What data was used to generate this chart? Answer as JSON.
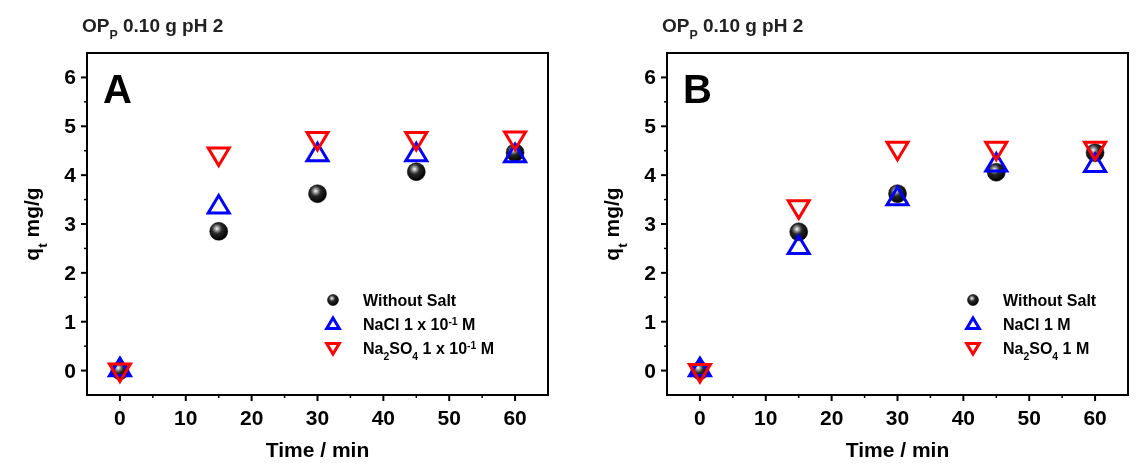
{
  "chart_data": [
    {
      "type": "scatter",
      "title": "OP$_{P}$ 0.10 g pH 2",
      "xlabel": "Time / min",
      "ylabel": "q$_{t}$ mg/g",
      "annotations": [
        "A"
      ],
      "x": [
        0,
        15,
        30,
        45,
        60
      ],
      "xlim": [
        -5,
        65
      ],
      "xticks": [
        0,
        10,
        20,
        30,
        40,
        50,
        60
      ],
      "ylim": [
        -0.5,
        6.5
      ],
      "yticks": [
        0,
        1,
        2,
        3,
        4,
        5,
        6
      ],
      "legend": "bottom right",
      "grid": false,
      "series": [
        {
          "name": "Without Salt",
          "color": "#000000",
          "marker": "circle",
          "values": [
            0,
            2.85,
            3.62,
            4.07,
            4.46
          ]
        },
        {
          "name": "NaCl 1 x 10$^{-1}$ M",
          "color": "#0000ff",
          "marker": "triangle",
          "values": [
            0.05,
            3.38,
            4.45,
            4.45,
            4.43
          ]
        },
        {
          "name": "Na$_{2}$SO$_{4}$ 1 x 10$^{-1}$ M",
          "color": "#ff0000",
          "marker": "triangle-down",
          "values": [
            -0.02,
            4.4,
            4.72,
            4.72,
            4.73
          ]
        }
      ]
    },
    {
      "type": "scatter",
      "title": "OP$_{P}$ 0.10 g pH 2",
      "xlabel": "Time / min",
      "ylabel": "q$_{t}$ mg/g",
      "annotations": [
        "B"
      ],
      "x": [
        0,
        15,
        30,
        45,
        60
      ],
      "xlim": [
        -5,
        65
      ],
      "xticks": [
        0,
        10,
        20,
        30,
        40,
        50,
        60
      ],
      "ylim": [
        -0.5,
        6.5
      ],
      "yticks": [
        0,
        1,
        2,
        3,
        4,
        5,
        6
      ],
      "legend": "bottom right",
      "grid": false,
      "series": [
        {
          "name": "Without Salt",
          "color": "#000000",
          "marker": "circle",
          "values": [
            0,
            2.84,
            3.62,
            4.06,
            4.46
          ]
        },
        {
          "name": "NaCl 1 M",
          "color": "#0000ff",
          "marker": "triangle",
          "values": [
            0.05,
            2.55,
            3.55,
            4.24,
            4.23
          ]
        },
        {
          "name": "Na$_{2}$SO$_{4}$ 1 M",
          "color": "#ff0000",
          "marker": "triangle-down",
          "values": [
            -0.03,
            3.32,
            4.52,
            4.52,
            4.52
          ]
        }
      ]
    }
  ]
}
